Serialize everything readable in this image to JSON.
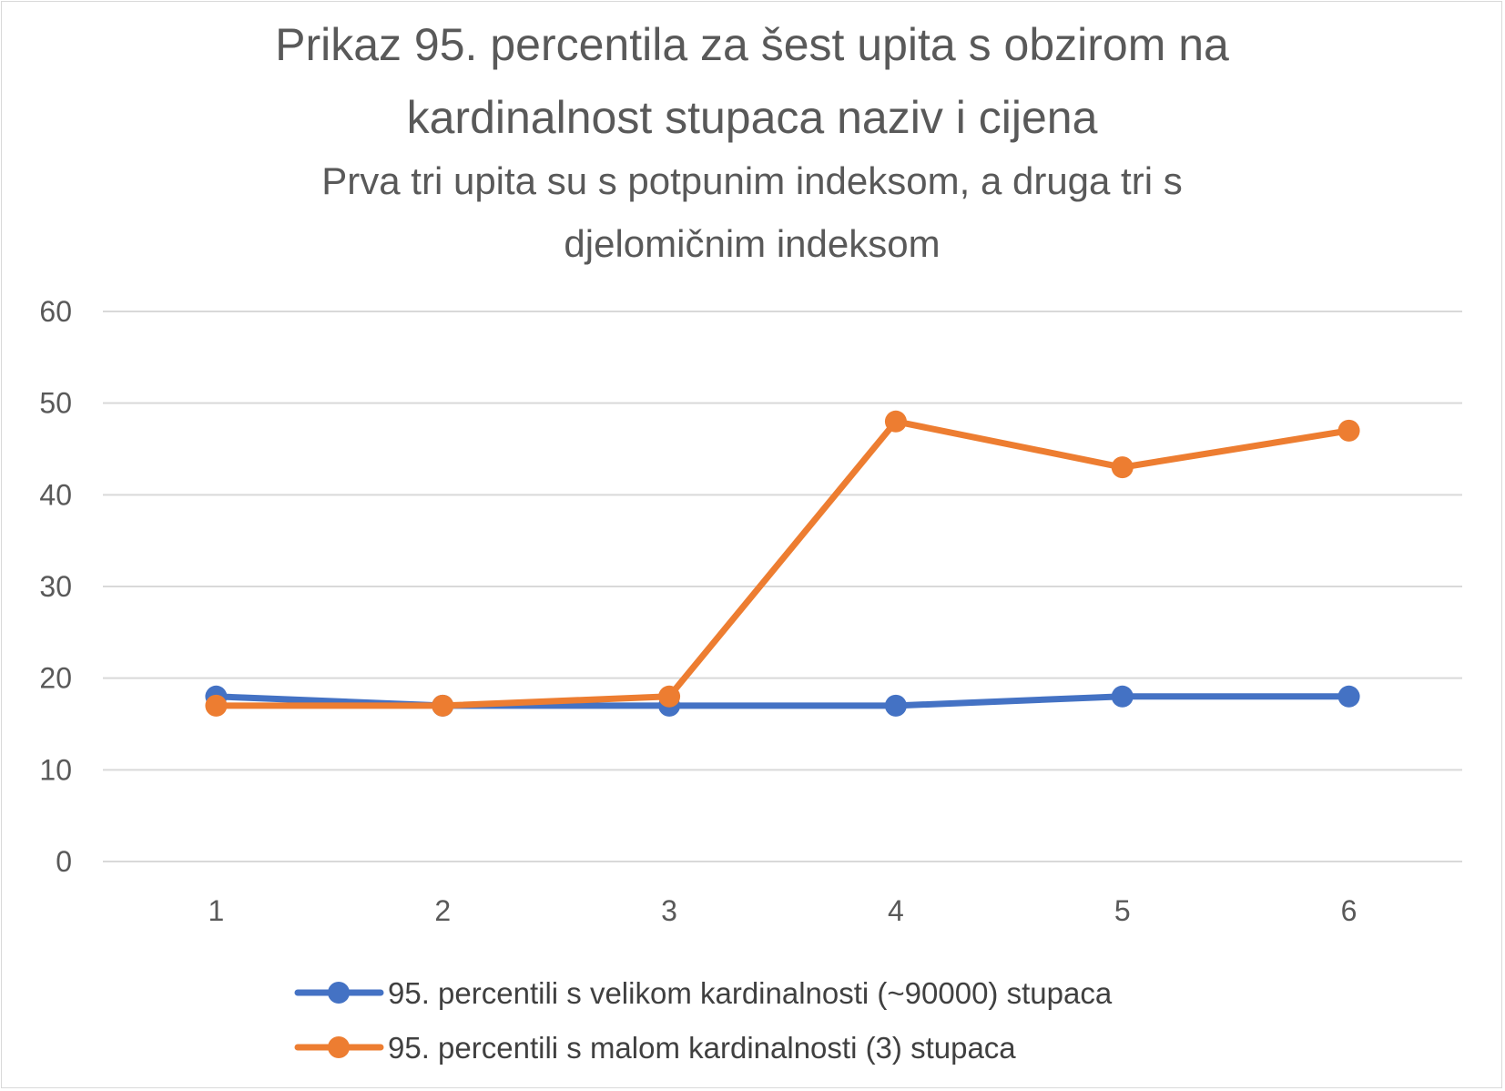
{
  "chart_data": {
    "type": "line",
    "title_lines": [
      "Prikaz 95. percentila za šest upita s obzirom na",
      "kardinalnost stupaca naziv i cijena"
    ],
    "subtitle_lines": [
      "Prva tri upita su s potpunim indeksom, a druga tri s",
      "djelomičnim indeksom"
    ],
    "categories": [
      "1",
      "2",
      "3",
      "4",
      "5",
      "6"
    ],
    "y_ticks": [
      "0",
      "10",
      "20",
      "30",
      "40",
      "50",
      "60"
    ],
    "ylim": [
      0,
      60
    ],
    "grid": true,
    "legend_position": "bottom",
    "series": [
      {
        "name": "95. percentili s velikom kardinalnosti (~90000) stupaca",
        "values": [
          18,
          17,
          17,
          17,
          18,
          18
        ],
        "color": "#4472c4"
      },
      {
        "name": "95. percentili s malom kardinalnosti (3) stupaca",
        "values": [
          17,
          17,
          18,
          48,
          43,
          47
        ],
        "color": "#ed7d31"
      }
    ]
  }
}
